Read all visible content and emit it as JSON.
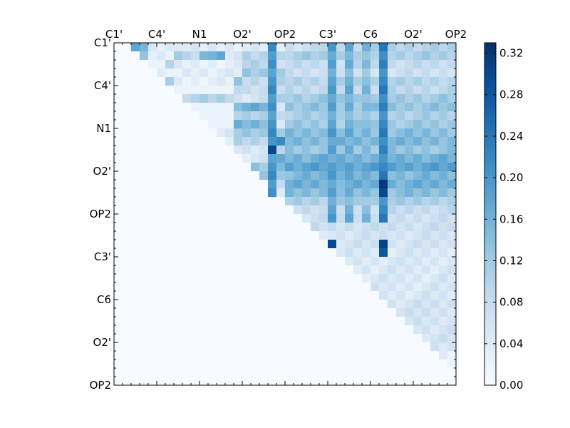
{
  "chart_data": {
    "type": "heatmap",
    "title": "",
    "xlabel": "",
    "ylabel": "",
    "n": 40,
    "x_tick_labels": [
      "C1'",
      "C4'",
      "N1",
      "O2'",
      "OP2",
      "C3'",
      "C6",
      "O2'",
      "OP2"
    ],
    "y_tick_labels": [
      "C1'",
      "C4'",
      "N1",
      "O2'",
      "OP2",
      "C3'",
      "C6",
      "O2'",
      "OP2"
    ],
    "label_tick_indices": [
      0,
      5,
      10,
      15,
      20,
      25,
      30,
      35,
      40
    ],
    "colorbar": {
      "min": 0.0,
      "max": 0.33,
      "ticks": [
        "0.00",
        "0.04",
        "0.08",
        "0.12",
        "0.16",
        "0.20",
        "0.24",
        "0.28",
        "0.32"
      ],
      "tick_values": [
        0.0,
        0.04,
        0.08,
        0.12,
        0.16,
        0.2,
        0.24,
        0.28,
        0.32
      ]
    },
    "colors": [
      "#f7fbff",
      "#deebf7",
      "#c6dbef",
      "#9ecae1",
      "#6baed6",
      "#4292c6",
      "#2171b5",
      "#08519c",
      "#08306b"
    ],
    "matrix_note": "upper triangular; values estimated",
    "row_segments": [
      [
        [
          2,
          4,
          0.16
        ],
        [
          4,
          7,
          0.04
        ],
        [
          7,
          8,
          0.06
        ],
        [
          8,
          20,
          0.04
        ],
        [
          20,
          24,
          0.07
        ],
        [
          24,
          40,
          0.1
        ]
      ],
      [
        [
          3,
          4,
          0.12
        ],
        [
          4,
          7,
          0.04
        ],
        [
          7,
          8,
          0.12
        ],
        [
          8,
          10,
          0.08
        ],
        [
          10,
          11,
          0.14
        ],
        [
          11,
          13,
          0.17
        ],
        [
          13,
          15,
          0.06
        ],
        [
          15,
          20,
          0.09
        ],
        [
          20,
          40,
          0.11
        ]
      ],
      [
        [
          4,
          5,
          0.02
        ],
        [
          5,
          6,
          0.02
        ],
        [
          6,
          7,
          0.1
        ],
        [
          7,
          15,
          0.03
        ],
        [
          15,
          18,
          0.1
        ],
        [
          18,
          40,
          0.08
        ]
      ],
      [
        [
          5,
          6,
          0.04
        ],
        [
          6,
          8,
          0.02
        ],
        [
          8,
          15,
          0.04
        ],
        [
          15,
          20,
          0.12
        ],
        [
          20,
          40,
          0.07
        ]
      ],
      [
        [
          6,
          7,
          0.12
        ],
        [
          7,
          14,
          0.03
        ],
        [
          14,
          15,
          0.12
        ],
        [
          15,
          20,
          0.09
        ],
        [
          20,
          40,
          0.1
        ]
      ],
      [
        [
          7,
          14,
          0.02
        ],
        [
          14,
          15,
          0.1
        ],
        [
          15,
          20,
          0.08
        ],
        [
          20,
          40,
          0.09
        ]
      ],
      [
        [
          8,
          14,
          0.1
        ],
        [
          14,
          18,
          0.06
        ],
        [
          18,
          20,
          0.1
        ],
        [
          20,
          40,
          0.12
        ]
      ],
      [
        [
          9,
          14,
          0.02
        ],
        [
          14,
          18,
          0.16
        ],
        [
          18,
          20,
          0.06
        ],
        [
          20,
          40,
          0.13
        ]
      ],
      [
        [
          10,
          14,
          0.02
        ],
        [
          14,
          18,
          0.1
        ],
        [
          18,
          20,
          0.08
        ],
        [
          20,
          40,
          0.11
        ]
      ],
      [
        [
          11,
          14,
          0.02
        ],
        [
          14,
          18,
          0.15
        ],
        [
          18,
          20,
          0.06
        ],
        [
          20,
          40,
          0.12
        ]
      ],
      [
        [
          12,
          14,
          0.04
        ],
        [
          14,
          18,
          0.12
        ],
        [
          18,
          20,
          0.12
        ],
        [
          20,
          40,
          0.14
        ]
      ],
      [
        [
          13,
          14,
          0.04
        ],
        [
          14,
          18,
          0.1
        ],
        [
          18,
          20,
          0.2
        ],
        [
          20,
          40,
          0.15
        ]
      ],
      [
        [
          14,
          18,
          0.06
        ],
        [
          18,
          20,
          0.1
        ],
        [
          20,
          40,
          0.13
        ]
      ],
      [
        [
          15,
          18,
          0.05
        ],
        [
          18,
          20,
          0.16
        ],
        [
          20,
          40,
          0.16
        ]
      ],
      [
        [
          16,
          18,
          0.12
        ],
        [
          18,
          20,
          0.16
        ],
        [
          20,
          40,
          0.18
        ]
      ],
      [
        [
          17,
          20,
          0.12
        ],
        [
          20,
          40,
          0.15
        ]
      ],
      [
        [
          18,
          20,
          0.1
        ],
        [
          20,
          40,
          0.16
        ]
      ],
      [
        [
          19,
          20,
          0.04
        ],
        [
          20,
          40,
          0.14
        ]
      ],
      [
        [
          20,
          40,
          0.11
        ]
      ],
      [
        [
          21,
          40,
          0.08
        ]
      ],
      [
        [
          22,
          40,
          0.07
        ]
      ],
      [
        [
          23,
          40,
          0.07
        ]
      ],
      [
        [
          24,
          25,
          0.03
        ],
        [
          25,
          40,
          0.06
        ]
      ],
      [
        [
          25,
          26,
          0.03
        ],
        [
          26,
          40,
          0.06
        ]
      ],
      [
        [
          26,
          40,
          0.05
        ]
      ],
      [
        [
          27,
          40,
          0.05
        ]
      ],
      [
        [
          28,
          40,
          0.05
        ]
      ],
      [
        [
          29,
          40,
          0.05
        ]
      ],
      [
        [
          30,
          40,
          0.05
        ]
      ],
      [
        [
          31,
          40,
          0.05
        ]
      ],
      [
        [
          32,
          40,
          0.06
        ]
      ],
      [
        [
          33,
          40,
          0.06
        ]
      ],
      [
        [
          34,
          40,
          0.06
        ]
      ],
      [
        [
          35,
          40,
          0.06
        ]
      ],
      [
        [
          36,
          40,
          0.06
        ]
      ],
      [
        [
          37,
          40,
          0.05
        ]
      ],
      [
        [
          38,
          40,
          0.03
        ]
      ],
      [
        [
          39,
          40,
          0.02
        ]
      ],
      [],
      []
    ],
    "column_highlights": [
      {
        "col": 18,
        "from_row": 0,
        "to_row": 19,
        "value": 0.22
      },
      {
        "col": 25,
        "from_row": 0,
        "to_row": 20,
        "value": 0.2
      },
      {
        "col": 27,
        "from_row": 0,
        "to_row": 20,
        "value": 0.18
      },
      {
        "col": 31,
        "from_row": 0,
        "to_row": 20,
        "value": 0.24
      },
      {
        "col": 29,
        "from_row": 0,
        "to_row": 20,
        "value": 0.16
      }
    ],
    "hotspots": [
      {
        "row": 12,
        "col": 18,
        "value": 0.3
      },
      {
        "row": 16,
        "col": 31,
        "value": 0.32
      },
      {
        "row": 17,
        "col": 31,
        "value": 0.3
      },
      {
        "row": 23,
        "col": 25,
        "value": 0.3
      },
      {
        "row": 23,
        "col": 31,
        "value": 0.31
      },
      {
        "row": 24,
        "col": 31,
        "value": 0.28
      }
    ]
  }
}
